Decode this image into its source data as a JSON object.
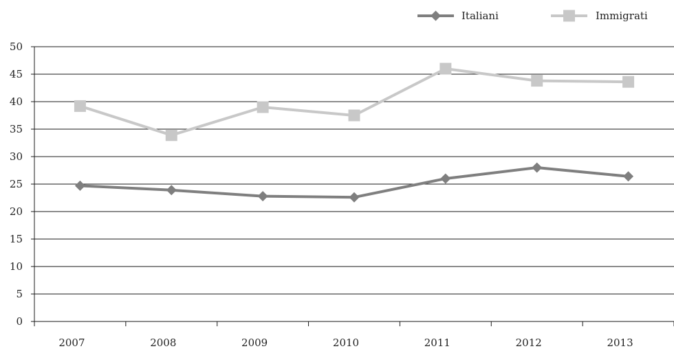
{
  "chart_data": {
    "type": "line",
    "title": "",
    "xlabel": "",
    "ylabel": "",
    "categories": [
      "2007",
      "2008",
      "2009",
      "2010",
      "2011",
      "2012",
      "2013"
    ],
    "ylim": [
      0,
      50
    ],
    "yticks": [
      0,
      5,
      10,
      15,
      20,
      25,
      30,
      35,
      40,
      45,
      50
    ],
    "grid": "horizontal",
    "legend_position": "top-right",
    "series": [
      {
        "name": "Italiani",
        "marker": "diamond",
        "color": "#7f7f7f",
        "values": [
          24.7,
          23.9,
          22.8,
          22.6,
          26.0,
          28.0,
          26.4
        ]
      },
      {
        "name": "Immigrati",
        "marker": "square",
        "color": "#c8c8c8",
        "values": [
          39.2,
          33.9,
          39.0,
          37.5,
          46.0,
          43.8,
          43.6
        ]
      }
    ]
  }
}
